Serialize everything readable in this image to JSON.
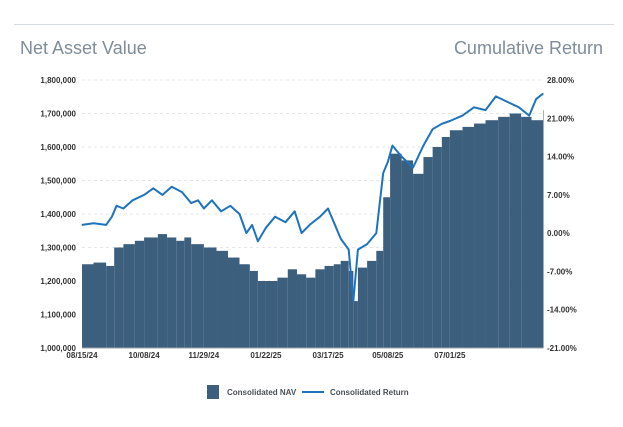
{
  "headings": {
    "left": "Net Asset Value",
    "right": "Cumulative Return"
  },
  "colors": {
    "nav_bar": "#3d5f7e",
    "return_line": "#1e73be",
    "grid": "#e3e6ea"
  },
  "legend": {
    "nav_label": "Consolidated NAV",
    "return_label": "Consolidated Return"
  },
  "chart_data": {
    "type": "bar+line",
    "y_left": {
      "range": [
        1000000,
        1800000
      ],
      "ticks": [
        1000000,
        1100000,
        1200000,
        1300000,
        1400000,
        1500000,
        1600000,
        1700000,
        1800000
      ],
      "tick_labels": [
        "1,000,000",
        "1,100,000",
        "1,200,000",
        "1,300,000",
        "1,400,000",
        "1,500,000",
        "1,600,000",
        "1,700,000",
        "1,800,000"
      ]
    },
    "y_right": {
      "range": [
        -21,
        28
      ],
      "ticks": [
        -21,
        -14,
        -7,
        0,
        7,
        14,
        21,
        28
      ],
      "tick_labels": [
        "-21.00%",
        "-14.00%",
        "-7.00%",
        "0.00%",
        "7.00%",
        "14.00%",
        "21.00%",
        "28.00%"
      ]
    },
    "x": {
      "start": "2024-08-15",
      "end": "2025-09-20",
      "ticks": [
        "2024-08-15",
        "2024-10-08",
        "2024-11-29",
        "2025-01-22",
        "2025-03-17",
        "2025-05-08",
        "2025-07-01"
      ],
      "tick_labels": [
        "08/15/24",
        "10/08/24",
        "11/29/24",
        "01/22/25",
        "03/17/25",
        "05/08/25",
        "07/01/25"
      ]
    },
    "grid": "horizontal dashed",
    "legend_position": "bottom-center",
    "series": [
      {
        "name": "Consolidated NAV",
        "type": "bar",
        "axis": "left",
        "points": [
          [
            "2024-08-15",
            1250000
          ],
          [
            "2024-08-25",
            1255000
          ],
          [
            "2024-09-05",
            1245000
          ],
          [
            "2024-09-12",
            1300000
          ],
          [
            "2024-09-20",
            1310000
          ],
          [
            "2024-09-30",
            1320000
          ],
          [
            "2024-10-08",
            1330000
          ],
          [
            "2024-10-20",
            1340000
          ],
          [
            "2024-10-28",
            1330000
          ],
          [
            "2024-11-05",
            1320000
          ],
          [
            "2024-11-12",
            1330000
          ],
          [
            "2024-11-18",
            1310000
          ],
          [
            "2024-11-29",
            1300000
          ],
          [
            "2024-12-10",
            1290000
          ],
          [
            "2024-12-20",
            1270000
          ],
          [
            "2024-12-30",
            1250000
          ],
          [
            "2025-01-08",
            1230000
          ],
          [
            "2025-01-15",
            1200000
          ],
          [
            "2025-01-22",
            1200000
          ],
          [
            "2025-02-01",
            1210000
          ],
          [
            "2025-02-10",
            1235000
          ],
          [
            "2025-02-18",
            1220000
          ],
          [
            "2025-02-26",
            1210000
          ],
          [
            "2025-03-06",
            1235000
          ],
          [
            "2025-03-14",
            1245000
          ],
          [
            "2025-03-22",
            1250000
          ],
          [
            "2025-03-28",
            1260000
          ],
          [
            "2025-04-04",
            1230000
          ],
          [
            "2025-04-08",
            1140000
          ],
          [
            "2025-04-12",
            1240000
          ],
          [
            "2025-04-20",
            1260000
          ],
          [
            "2025-04-28",
            1290000
          ],
          [
            "2025-05-04",
            1450000
          ],
          [
            "2025-05-10",
            1580000
          ],
          [
            "2025-05-20",
            1560000
          ],
          [
            "2025-05-30",
            1520000
          ],
          [
            "2025-06-08",
            1570000
          ],
          [
            "2025-06-16",
            1600000
          ],
          [
            "2025-06-24",
            1630000
          ],
          [
            "2025-07-01",
            1650000
          ],
          [
            "2025-07-12",
            1660000
          ],
          [
            "2025-07-22",
            1670000
          ],
          [
            "2025-08-01",
            1680000
          ],
          [
            "2025-08-12",
            1690000
          ],
          [
            "2025-08-22",
            1700000
          ],
          [
            "2025-09-01",
            1690000
          ],
          [
            "2025-09-10",
            1680000
          ],
          [
            "2025-09-20",
            1710000
          ]
        ]
      },
      {
        "name": "Consolidated Return",
        "type": "line",
        "axis": "right",
        "points": [
          [
            "2024-08-15",
            1.5
          ],
          [
            "2024-08-25",
            1.8
          ],
          [
            "2024-09-05",
            1.5
          ],
          [
            "2024-09-10",
            3.0
          ],
          [
            "2024-09-14",
            5.0
          ],
          [
            "2024-09-20",
            4.5
          ],
          [
            "2024-09-28",
            6.0
          ],
          [
            "2024-10-08",
            7.0
          ],
          [
            "2024-10-16",
            8.2
          ],
          [
            "2024-10-24",
            7.0
          ],
          [
            "2024-11-01",
            8.5
          ],
          [
            "2024-11-10",
            7.5
          ],
          [
            "2024-11-18",
            5.5
          ],
          [
            "2024-11-24",
            6.0
          ],
          [
            "2024-11-29",
            4.5
          ],
          [
            "2024-12-06",
            6.0
          ],
          [
            "2024-12-14",
            4.0
          ],
          [
            "2024-12-22",
            5.0
          ],
          [
            "2024-12-30",
            3.5
          ],
          [
            "2025-01-05",
            0.0
          ],
          [
            "2025-01-10",
            1.5
          ],
          [
            "2025-01-15",
            -1.5
          ],
          [
            "2025-01-22",
            1.0
          ],
          [
            "2025-01-30",
            3.0
          ],
          [
            "2025-02-08",
            2.0
          ],
          [
            "2025-02-16",
            4.0
          ],
          [
            "2025-02-22",
            0.0
          ],
          [
            "2025-03-01",
            1.5
          ],
          [
            "2025-03-10",
            3.0
          ],
          [
            "2025-03-17",
            4.5
          ],
          [
            "2025-03-22",
            2.0
          ],
          [
            "2025-03-28",
            -1.0
          ],
          [
            "2025-04-04",
            -3.0
          ],
          [
            "2025-04-08",
            -12.5
          ],
          [
            "2025-04-12",
            -3.0
          ],
          [
            "2025-04-20",
            -2.0
          ],
          [
            "2025-04-28",
            0.0
          ],
          [
            "2025-05-04",
            11.0
          ],
          [
            "2025-05-08",
            13.0
          ],
          [
            "2025-05-12",
            16.0
          ],
          [
            "2025-05-20",
            14.0
          ],
          [
            "2025-05-30",
            12.0
          ],
          [
            "2025-06-08",
            16.0
          ],
          [
            "2025-06-16",
            19.0
          ],
          [
            "2025-06-24",
            20.0
          ],
          [
            "2025-07-01",
            20.5
          ],
          [
            "2025-07-12",
            21.5
          ],
          [
            "2025-07-22",
            23.0
          ],
          [
            "2025-08-01",
            22.5
          ],
          [
            "2025-08-10",
            25.0
          ],
          [
            "2025-08-20",
            24.0
          ],
          [
            "2025-08-30",
            23.0
          ],
          [
            "2025-09-08",
            21.5
          ],
          [
            "2025-09-14",
            24.5
          ],
          [
            "2025-09-20",
            25.5
          ]
        ]
      }
    ]
  }
}
